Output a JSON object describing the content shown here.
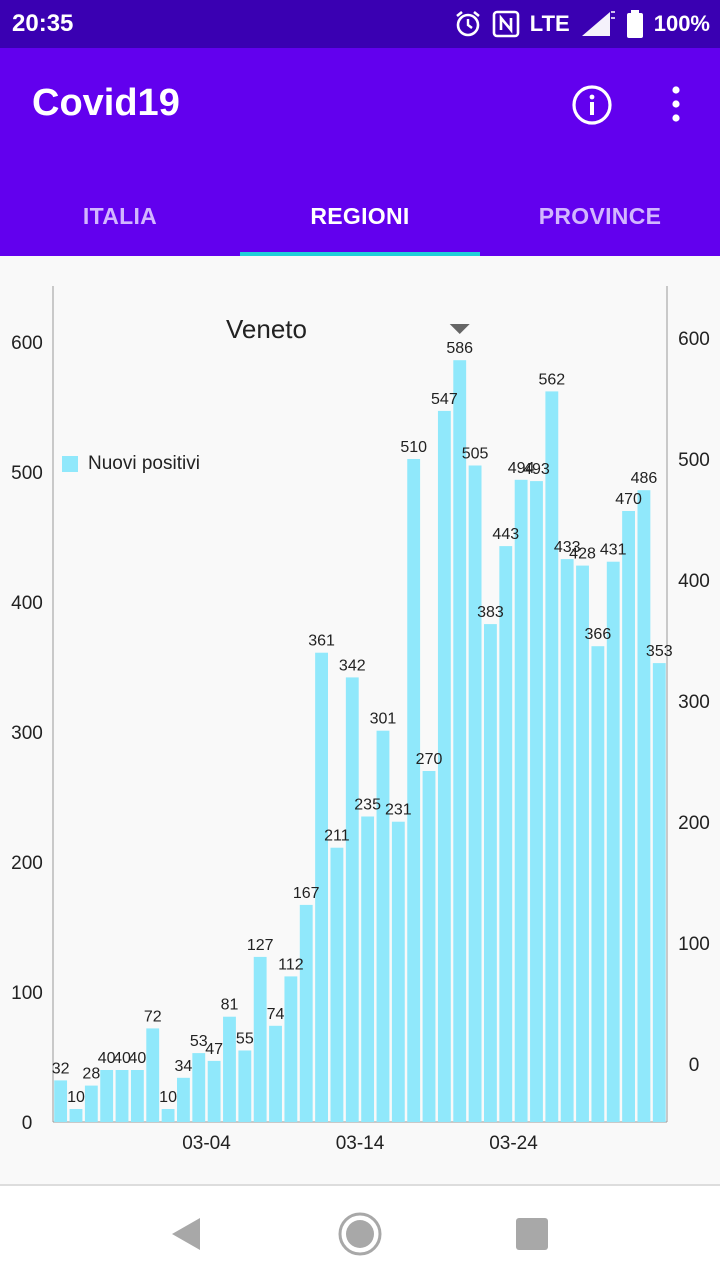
{
  "status_bar": {
    "time": "20:35",
    "network": "LTE",
    "battery": "100%",
    "icons": [
      "alarm-icon",
      "nfc-icon",
      "signal-icon",
      "battery-icon"
    ]
  },
  "app_bar": {
    "title": "Covid19",
    "actions": [
      "info-icon",
      "more-vert-icon"
    ]
  },
  "tabs": [
    {
      "label": "ITALIA",
      "active": false
    },
    {
      "label": "REGIONI",
      "active": true
    },
    {
      "label": "PROVINCE",
      "active": false
    }
  ],
  "colors": {
    "status_bar": "#3a00b2",
    "app_bar": "#6200ee",
    "tab_indicator": "#20d0d8",
    "bar": "#90e8fb"
  },
  "chart_data": {
    "type": "bar",
    "title": "Veneto",
    "series": [
      {
        "name": "Nuovi positivi",
        "values": [
          32,
          10,
          28,
          40,
          40,
          40,
          72,
          10,
          34,
          53,
          47,
          81,
          55,
          127,
          74,
          112,
          167,
          361,
          211,
          342,
          235,
          301,
          231,
          510,
          270,
          547,
          586,
          505,
          383,
          443,
          494,
          493,
          562,
          433,
          428,
          366,
          431,
          470,
          486,
          353
        ]
      }
    ],
    "x_tick_labels": [
      "03-04",
      "03-14",
      "03-24"
    ],
    "y_left_ticks": [
      "0",
      "100",
      "200",
      "300",
      "400",
      "500",
      "600"
    ],
    "y_right_ticks": [
      "0",
      "100",
      "200",
      "300",
      "400",
      "500",
      "600"
    ],
    "ylim": [
      0,
      640
    ],
    "legend": "bottom-left",
    "highlight_marker_on": "586"
  },
  "nav_bar": [
    "back-icon",
    "home-icon",
    "recents-icon"
  ]
}
